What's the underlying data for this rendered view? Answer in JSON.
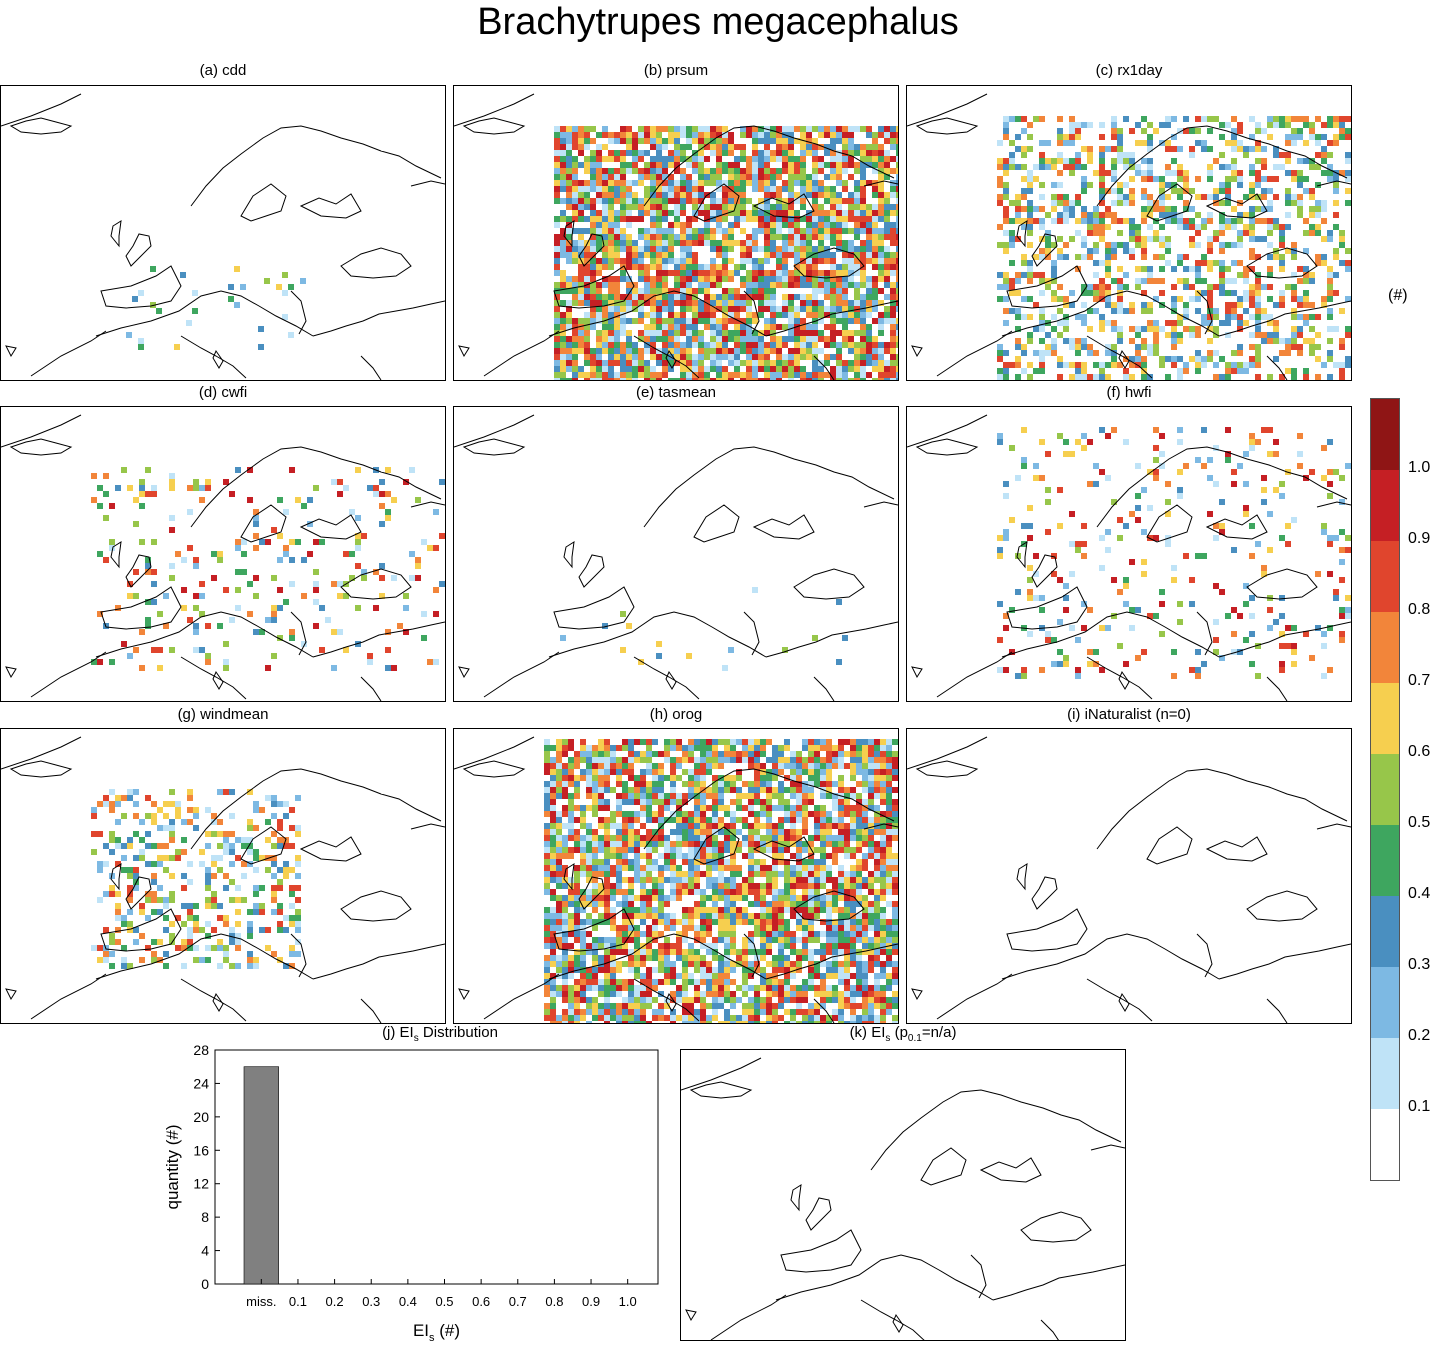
{
  "title": "Brachytrupes megacephalus",
  "panels": [
    {
      "id": "a",
      "label": "(a) cdd"
    },
    {
      "id": "b",
      "label": "(b) prsum"
    },
    {
      "id": "c",
      "label": "(c) rx1day"
    },
    {
      "id": "d",
      "label": "(d) cwfi"
    },
    {
      "id": "e",
      "label": "(e) tasmean"
    },
    {
      "id": "f",
      "label": "(f) hwfi"
    },
    {
      "id": "g",
      "label": "(g) windmean"
    },
    {
      "id": "h",
      "label": "(h) orog"
    },
    {
      "id": "i",
      "label": "(i) iNaturalist (n=0)"
    }
  ],
  "panel_j": {
    "label_pre": "(j) EI",
    "label_sub": "s",
    "label_post": " Distribution"
  },
  "panel_k": {
    "label_pre": "(k) EI",
    "label_sub": "s",
    "label_mid": " (p",
    "label_sub2": "0.1",
    "label_post": "=n/a)"
  },
  "colorbar": {
    "unit": "(#)",
    "levels": [
      "0.1",
      "0.2",
      "0.3",
      "0.4",
      "0.5",
      "0.6",
      "0.7",
      "0.8",
      "0.9",
      "1.0"
    ],
    "colors": [
      "#ffffff",
      "#bfe3f7",
      "#7db9e3",
      "#4a8fc0",
      "#3ea65f",
      "#97c64a",
      "#f6cf4f",
      "#f2853a",
      "#e0452d",
      "#c51f24",
      "#8f1515"
    ]
  },
  "chart_data": {
    "type": "bar",
    "title": "(j) EIs Distribution",
    "categories": [
      "miss.",
      "0.1",
      "0.2",
      "0.3",
      "0.4",
      "0.5",
      "0.6",
      "0.7",
      "0.8",
      "0.9",
      "1.0"
    ],
    "values": [
      26,
      0,
      0,
      0,
      0,
      0,
      0,
      0,
      0,
      0,
      0
    ],
    "ylim": [
      0,
      28
    ],
    "yticks": [
      "0",
      "4",
      "8",
      "12",
      "16",
      "20",
      "24",
      "28"
    ],
    "ylabel": "quantity (#)",
    "xlabel_pre": "EI",
    "xlabel_sub": "s",
    "xlabel_post": " (#)",
    "bar_color": "#808080"
  }
}
